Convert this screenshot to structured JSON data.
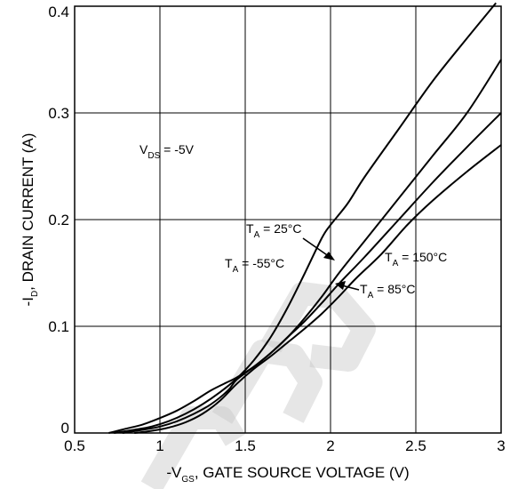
{
  "chart_data": {
    "type": "line",
    "xlabel": {
      "pre": "-V",
      "sub": "GS",
      "post": ", GATE SOURCE VOLTAGE (V)"
    },
    "ylabel": {
      "pre": "-I",
      "sub": "D",
      "post": ", DRAIN CURRENT (A)"
    },
    "xlim": [
      0.5,
      3.0
    ],
    "ylim": [
      0,
      0.4
    ],
    "xticks": [
      "0.5",
      "1",
      "1.5",
      "2",
      "2.5",
      "3"
    ],
    "yticks": [
      "0",
      "0.1",
      "0.2",
      "0.3",
      "0.4"
    ],
    "grid": true,
    "condition": {
      "pre": "V",
      "sub": "DS",
      "post": " = -5V"
    },
    "series": [
      {
        "name": "TA = -55°C",
        "label": {
          "pre": "T",
          "sub": "A",
          "post": " = -55°C"
        },
        "x": [
          0.7,
          0.8,
          0.9,
          1.0,
          1.1,
          1.2,
          1.3,
          1.4,
          1.45,
          1.55,
          1.65,
          1.75,
          1.85,
          1.95,
          2.05,
          2.2,
          2.4,
          2.6,
          2.8,
          3.0
        ],
        "y": [
          0.0,
          0.004,
          0.008,
          0.014,
          0.021,
          0.03,
          0.04,
          0.048,
          0.052,
          0.062,
          0.075,
          0.09,
          0.108,
          0.128,
          0.15,
          0.18,
          0.22,
          0.26,
          0.3,
          0.35
        ]
      },
      {
        "name": "TA = 25°C",
        "label": {
          "pre": "T",
          "sub": "A",
          "post": " = 25°C"
        },
        "x": [
          0.73,
          0.85,
          0.95,
          1.05,
          1.15,
          1.25,
          1.35,
          1.45,
          1.55,
          1.65,
          1.75,
          1.85,
          1.95,
          2.0,
          2.1,
          2.2,
          2.4,
          2.6,
          2.8,
          2.97
        ],
        "y": [
          0.0,
          0.003,
          0.006,
          0.011,
          0.018,
          0.027,
          0.038,
          0.051,
          0.068,
          0.09,
          0.118,
          0.15,
          0.183,
          0.195,
          0.215,
          0.24,
          0.285,
          0.33,
          0.37,
          0.403
        ]
      },
      {
        "name": "TA = 85°C",
        "label": {
          "pre": "T",
          "sub": "A",
          "post": " = 85°C"
        },
        "x": [
          0.78,
          0.9,
          1.0,
          1.1,
          1.2,
          1.3,
          1.4,
          1.45,
          1.55,
          1.65,
          1.75,
          1.85,
          1.95,
          2.05,
          2.2,
          2.4,
          2.6,
          2.8,
          3.0
        ],
        "y": [
          0.0,
          0.003,
          0.006,
          0.011,
          0.018,
          0.027,
          0.04,
          0.05,
          0.062,
          0.075,
          0.09,
          0.105,
          0.122,
          0.14,
          0.165,
          0.2,
          0.235,
          0.268,
          0.3
        ]
      },
      {
        "name": "TA = 150°C",
        "label": {
          "pre": "T",
          "sub": "A",
          "post": " = 150°C"
        },
        "x": [
          0.85,
          0.95,
          1.05,
          1.15,
          1.25,
          1.35,
          1.45,
          1.55,
          1.65,
          1.75,
          1.85,
          1.95,
          2.05,
          2.15,
          2.3,
          2.45,
          2.6,
          2.8,
          3.0
        ],
        "y": [
          0.0,
          0.002,
          0.005,
          0.01,
          0.018,
          0.03,
          0.046,
          0.06,
          0.072,
          0.085,
          0.098,
          0.112,
          0.128,
          0.145,
          0.168,
          0.195,
          0.218,
          0.245,
          0.27
        ]
      }
    ],
    "annotations": [
      {
        "target": "TA = 25°C",
        "arrow": true
      },
      {
        "target": "TA = -55°C",
        "arrow": false
      },
      {
        "target": "TA = 150°C",
        "arrow": false
      },
      {
        "target": "TA = 85°C",
        "arrow": true
      }
    ]
  },
  "watermark": {
    "text": "DISCONTINUED",
    "color": "#c8c8c8"
  }
}
